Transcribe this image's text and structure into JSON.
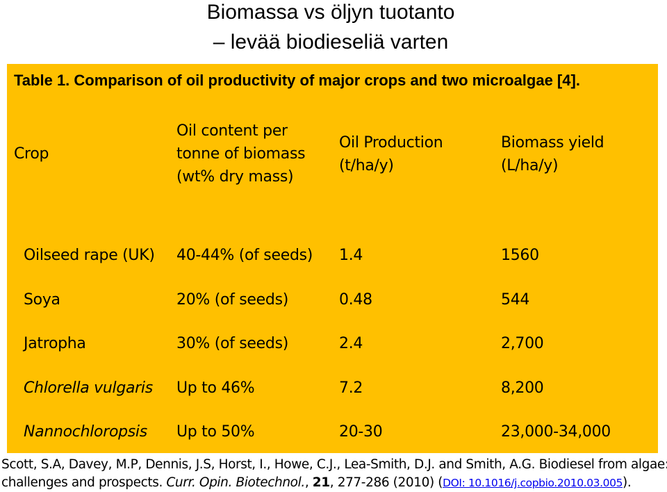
{
  "slide": {
    "title_line1": "Biomassa vs öljyn tuotanto",
    "title_line2": "– levää biodieseliä varten"
  },
  "table": {
    "caption": "Table 1. Comparison of oil productivity of major crops and two microalgae [4].",
    "headers": {
      "crop": "Crop",
      "oil_content": [
        "Oil content per",
        "tonne of biomass",
        "(wt% dry mass)"
      ],
      "oil_production": [
        "Oil Production",
        "(t/ha/y)"
      ],
      "biomass_yield": [
        "Biomass yield",
        "(L/ha/y)"
      ]
    },
    "rows": [
      {
        "crop": "Oilseed rape (UK)",
        "oil_content": "40-44% (of seeds)",
        "oil_production": "1.4",
        "biomass_yield": "1560"
      },
      {
        "crop": "Soya",
        "oil_content": "20% (of seeds)",
        "oil_production": "0.48",
        "biomass_yield": "544"
      },
      {
        "crop": "Jatropha",
        "oil_content": "30% (of seeds)",
        "oil_production": "2.4",
        "biomass_yield": "2,700"
      },
      {
        "crop": "Chlorella vulgaris",
        "oil_content": "Up to 46%",
        "oil_production": "7.2",
        "biomass_yield": "8,200"
      },
      {
        "crop": "Nannochloropsis",
        "oil_content": "Up to 50%",
        "oil_production": "20-30",
        "biomass_yield": "23,000-34,000"
      }
    ]
  },
  "reference": {
    "line1": "Scott, S.A, Davey, M.P, Dennis, J.S, Horst, I., Howe, C.J., Lea-Smith, D.J. and Smith, A.G. Biodiesel from algae:",
    "line2_pre": "challenges and prospects. ",
    "journal": "Curr. Opin. Biotechnol.",
    "sep": ", ",
    "volume": "21",
    "pages": ", 277-286 (2010) (",
    "doi": "DOI: 10.1016/j.copbio.2010.03.005",
    "line2_post": ")."
  },
  "colors": {
    "panel": "#ffc000",
    "link": "#0000ee"
  }
}
